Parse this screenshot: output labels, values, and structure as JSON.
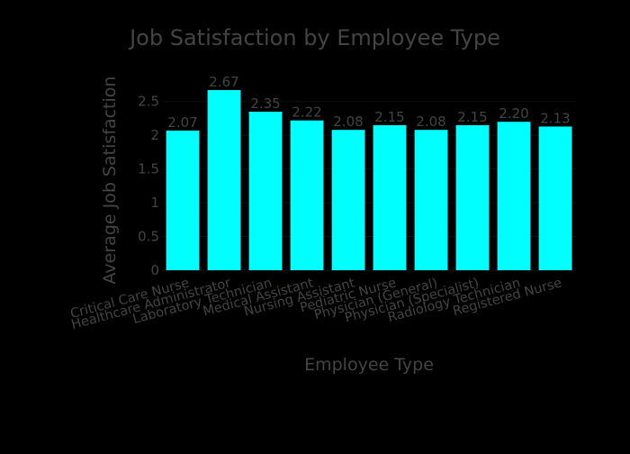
{
  "colors": {
    "background": "#000000",
    "plot_background": "#000000",
    "bar": "#00ffff",
    "text": "#444444",
    "gridline": "#111111"
  },
  "chart_data": {
    "type": "bar",
    "title": "Job Satisfaction by Employee Type",
    "xlabel": "Employee Type",
    "ylabel": "Average Job Satisfaction",
    "categories": [
      "Critical Care Nurse",
      "Healthcare Administrator",
      "Laboratory Technician",
      "Medical Assistant",
      "Nursing Assistant",
      "Pediatric Nurse",
      "Physician (General)",
      "Physician (Specialist)",
      "Radiology Technician",
      "Registered Nurse"
    ],
    "values": [
      2.07,
      2.67,
      2.35,
      2.22,
      2.08,
      2.15,
      2.08,
      2.15,
      2.2,
      2.13
    ],
    "data_labels": [
      "2.07",
      "2.67",
      "2.35",
      "2.22",
      "2.08",
      "2.15",
      "2.08",
      "2.15",
      "2.20",
      "2.13"
    ],
    "yticks": [
      0,
      0.5,
      1,
      1.5,
      2,
      2.5
    ],
    "ytick_labels": [
      "0",
      "0.5",
      "1",
      "1.5",
      "2",
      "2.5"
    ],
    "ylim": [
      0,
      2.67
    ],
    "grid": true,
    "legend": "none"
  }
}
